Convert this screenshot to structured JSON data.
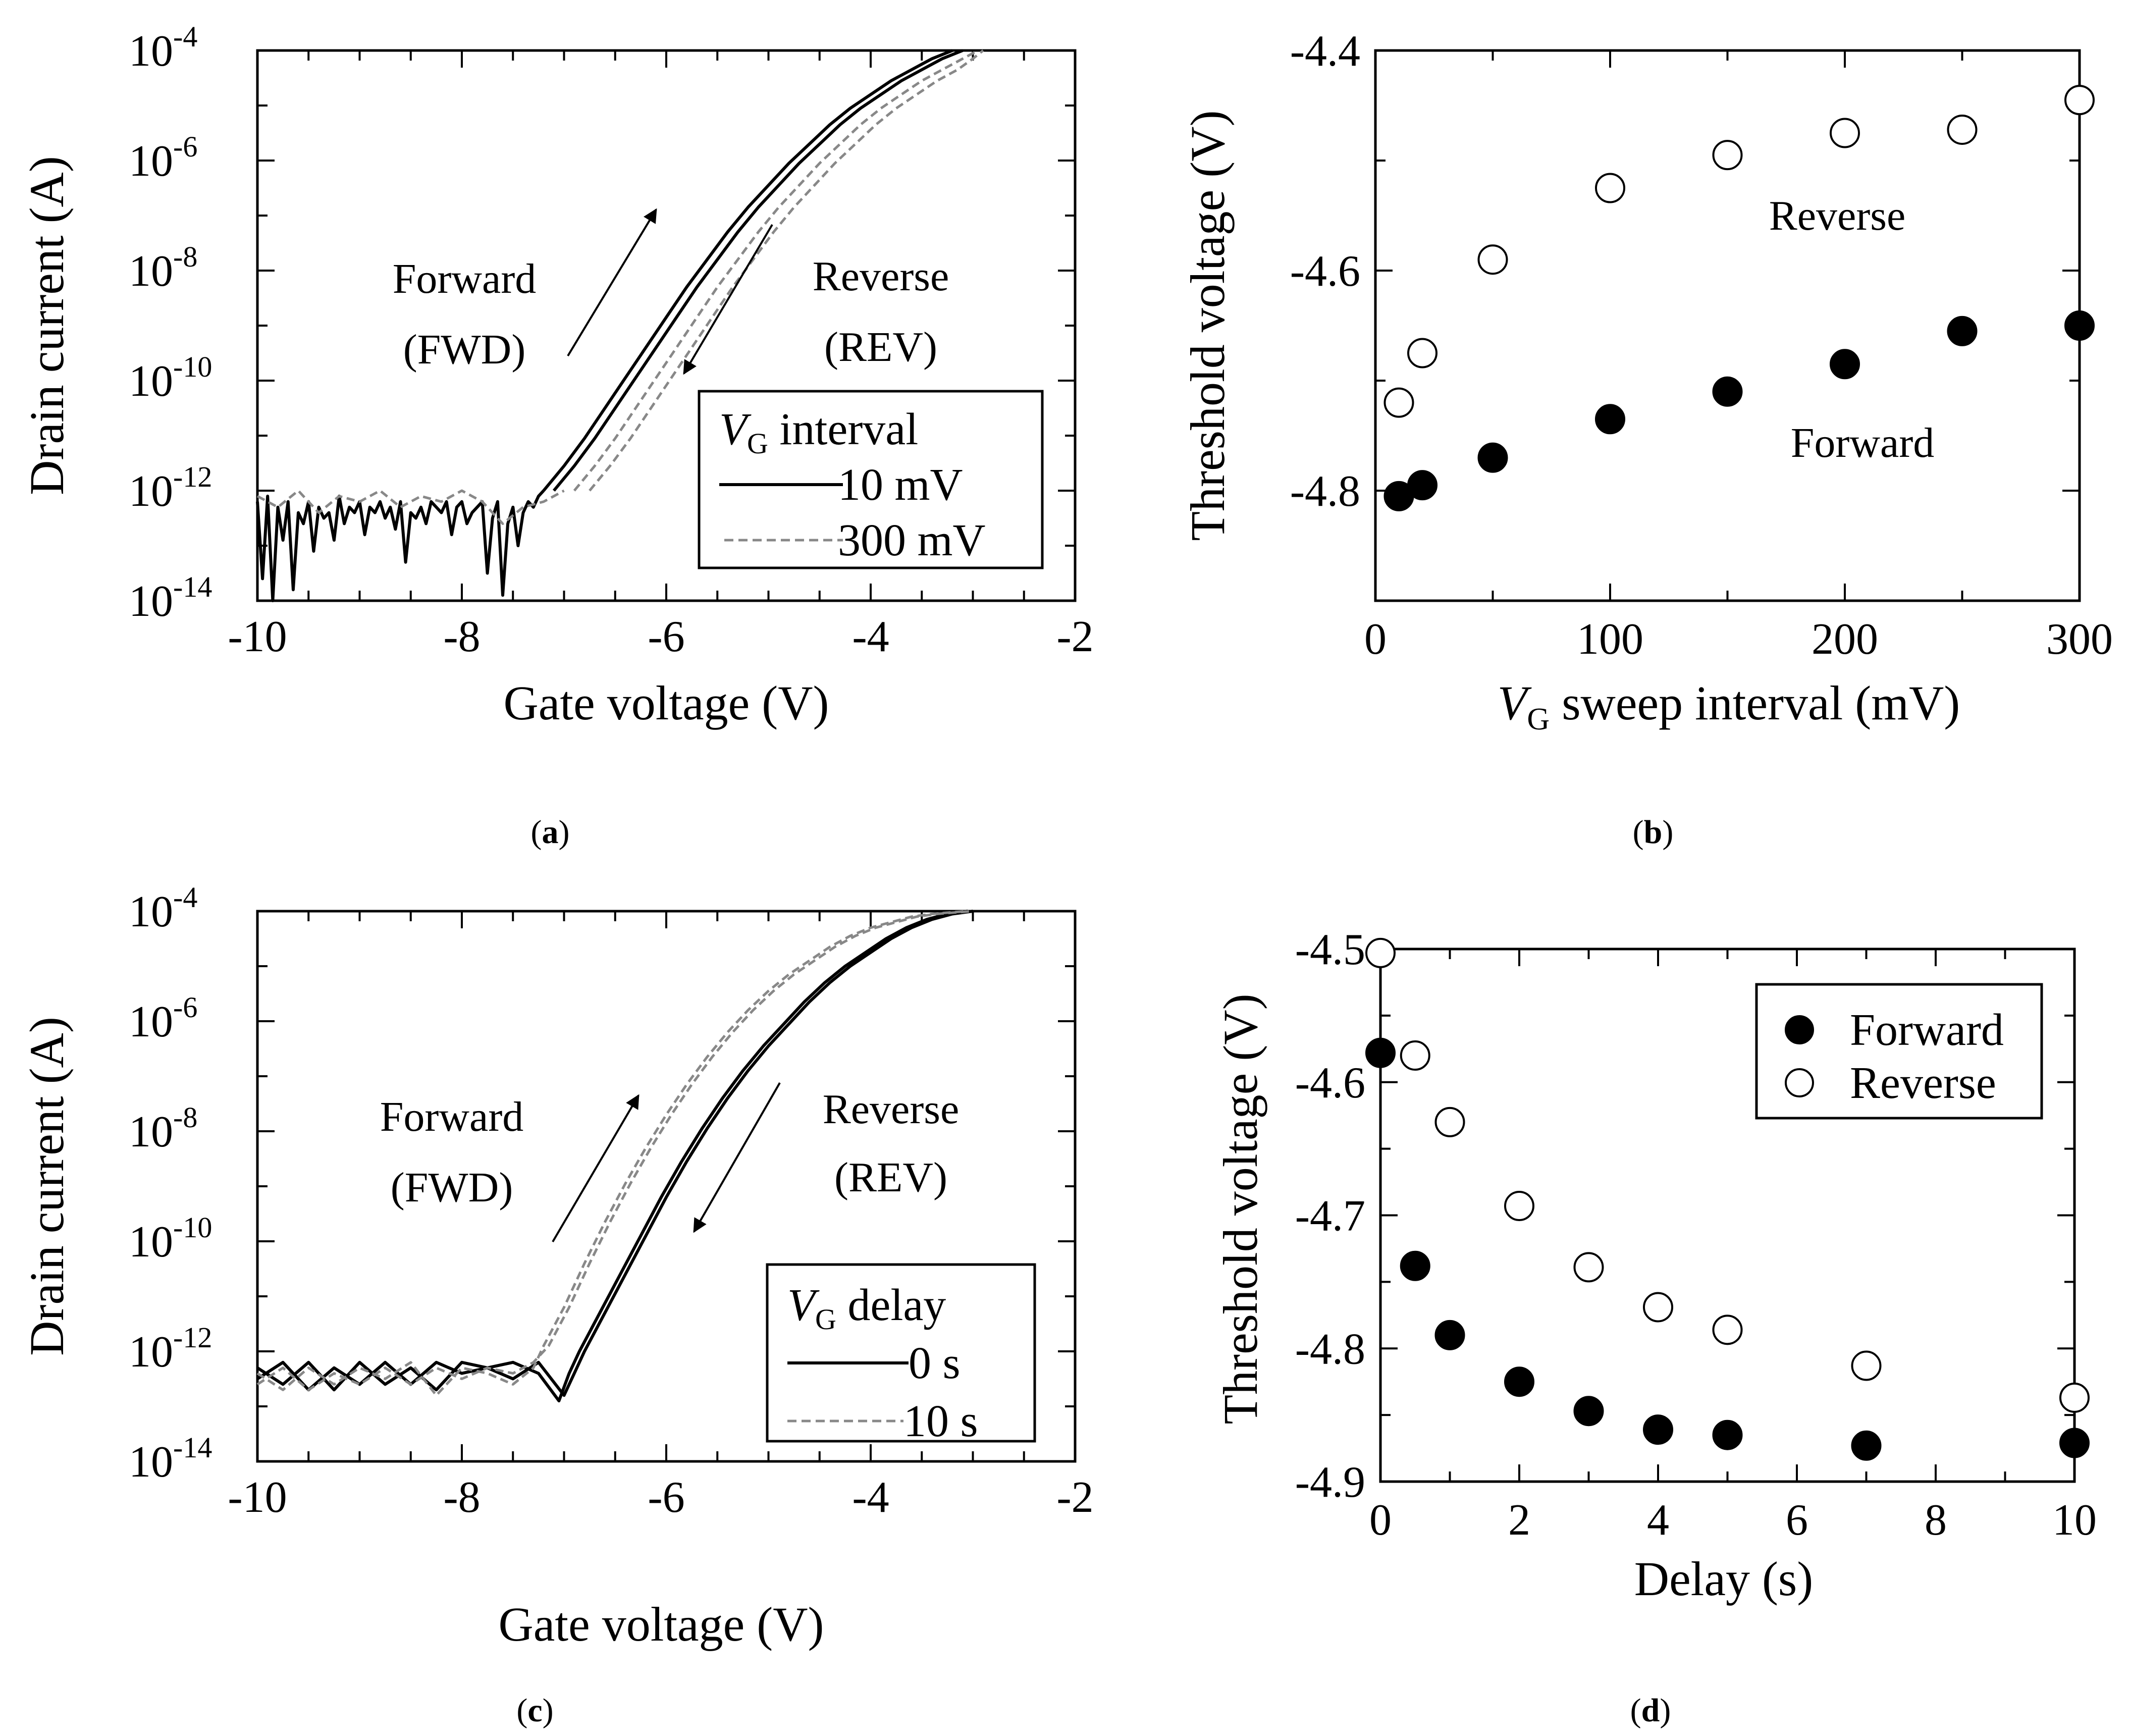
{
  "panels": {
    "a": {
      "label": "(",
      "letter": "a",
      "close": ")"
    },
    "b": {
      "label": "(",
      "letter": "b",
      "close": ")"
    },
    "c": {
      "label": "(",
      "letter": "c",
      "close": ")"
    },
    "d": {
      "label": "(",
      "letter": "d",
      "close": ")"
    }
  },
  "chart_data": [
    {
      "id": "a",
      "type": "line",
      "xlabel": "Gate voltage (V)",
      "ylabel": "Drain current (A)",
      "xlim": [
        -10,
        -2
      ],
      "xticks": [
        "-10",
        "-8",
        "-6",
        "-4",
        "-2"
      ],
      "yscale": "log",
      "ylim_exp": [
        -14,
        -4
      ],
      "yticks": [
        {
          "base": "10",
          "exp": "-14"
        },
        {
          "base": "10",
          "exp": "-12"
        },
        {
          "base": "10",
          "exp": "-10"
        },
        {
          "base": "10",
          "exp": "-8"
        },
        {
          "base": "10",
          "exp": "-6"
        },
        {
          "base": "10",
          "exp": "-4"
        }
      ],
      "annotations": {
        "forward": "Forward",
        "forward_abbr": "(FWD)",
        "reverse": "Reverse",
        "reverse_abbr": "(REV)"
      },
      "legend": {
        "title_var": "V",
        "title_sub": "G",
        "title_rest": " interval",
        "entries": [
          {
            "label": "10 mV",
            "style": "solid"
          },
          {
            "label": "300 mV",
            "style": "dashed"
          }
        ]
      },
      "series": [
        {
          "name": "10 mV FWD",
          "style": "solid",
          "color": "#000000",
          "x": [
            -7.2,
            -7.0,
            -6.8,
            -6.6,
            -6.4,
            -6.2,
            -6.0,
            -5.8,
            -5.6,
            -5.4,
            -5.2,
            -5.0,
            -4.8,
            -4.6,
            -4.4,
            -4.2,
            -4.0,
            -3.8,
            -3.6,
            -3.4,
            -3.2
          ],
          "y": [
            -12.0,
            -11.55,
            -11.05,
            -10.5,
            -9.95,
            -9.4,
            -8.85,
            -8.3,
            -7.8,
            -7.3,
            -6.85,
            -6.45,
            -6.05,
            -5.7,
            -5.35,
            -5.05,
            -4.8,
            -4.55,
            -4.35,
            -4.15,
            -4.0
          ]
        },
        {
          "name": "10 mV REV",
          "style": "solid",
          "color": "#000000",
          "x": [
            -7.1,
            -6.9,
            -6.7,
            -6.5,
            -6.3,
            -6.1,
            -5.9,
            -5.7,
            -5.5,
            -5.3,
            -5.1,
            -4.9,
            -4.7,
            -4.5,
            -4.3,
            -4.1,
            -3.9,
            -3.7,
            -3.5,
            -3.3,
            -3.1
          ],
          "y": [
            -12.0,
            -11.55,
            -11.05,
            -10.5,
            -9.95,
            -9.4,
            -8.85,
            -8.3,
            -7.8,
            -7.3,
            -6.85,
            -6.45,
            -6.05,
            -5.7,
            -5.35,
            -5.05,
            -4.8,
            -4.55,
            -4.35,
            -4.15,
            -4.0
          ]
        },
        {
          "name": "300 mV FWD",
          "style": "dashed",
          "color": "#888888",
          "x": [
            -6.9,
            -6.7,
            -6.5,
            -6.3,
            -6.1,
            -5.9,
            -5.7,
            -5.5,
            -5.3,
            -5.1,
            -4.9,
            -4.7,
            -4.5,
            -4.3,
            -4.1,
            -3.9,
            -3.7,
            -3.5,
            -3.3,
            -3.1,
            -2.95
          ],
          "y": [
            -12.0,
            -11.55,
            -11.05,
            -10.5,
            -9.95,
            -9.4,
            -8.85,
            -8.3,
            -7.8,
            -7.3,
            -6.85,
            -6.45,
            -6.05,
            -5.7,
            -5.35,
            -5.05,
            -4.8,
            -4.55,
            -4.35,
            -4.15,
            -4.0
          ]
        },
        {
          "name": "300 mV REV",
          "style": "dashed",
          "color": "#888888",
          "x": [
            -6.75,
            -6.55,
            -6.35,
            -6.15,
            -5.95,
            -5.75,
            -5.55,
            -5.35,
            -5.15,
            -4.95,
            -4.75,
            -4.55,
            -4.35,
            -4.15,
            -3.95,
            -3.75,
            -3.55,
            -3.35,
            -3.15,
            -3.0,
            -2.9
          ],
          "y": [
            -12.0,
            -11.55,
            -11.05,
            -10.5,
            -9.95,
            -9.4,
            -8.85,
            -8.3,
            -7.8,
            -7.3,
            -6.85,
            -6.45,
            -6.05,
            -5.7,
            -5.35,
            -5.05,
            -4.8,
            -4.55,
            -4.35,
            -4.15,
            -4.0
          ]
        },
        {
          "name": "10 mV noise floor",
          "style": "solid",
          "color": "#000000",
          "x": [
            -10.0,
            -9.95,
            -9.9,
            -9.85,
            -9.8,
            -9.75,
            -9.7,
            -9.65,
            -9.6,
            -9.55,
            -9.5,
            -9.45,
            -9.4,
            -9.35,
            -9.3,
            -9.25,
            -9.2,
            -9.15,
            -9.1,
            -9.05,
            -9.0,
            -8.95,
            -8.9,
            -8.85,
            -8.8,
            -8.75,
            -8.7,
            -8.65,
            -8.6,
            -8.55,
            -8.5,
            -8.45,
            -8.4,
            -8.35,
            -8.3,
            -8.25,
            -8.2,
            -8.15,
            -8.1,
            -8.05,
            -8.0,
            -7.95,
            -7.9,
            -7.85,
            -7.8,
            -7.75,
            -7.7,
            -7.65,
            -7.6,
            -7.55,
            -7.5,
            -7.45,
            -7.4,
            -7.35,
            -7.3,
            -7.25,
            -7.2
          ],
          "y": [
            -12.2,
            -13.6,
            -12.1,
            -14.0,
            -12.3,
            -12.9,
            -12.2,
            -13.8,
            -12.4,
            -12.6,
            -12.2,
            -13.1,
            -12.3,
            -12.5,
            -12.4,
            -12.9,
            -12.1,
            -12.6,
            -12.3,
            -12.4,
            -12.2,
            -12.8,
            -12.3,
            -12.4,
            -12.2,
            -12.5,
            -12.3,
            -12.7,
            -12.2,
            -13.3,
            -12.4,
            -12.5,
            -12.3,
            -12.6,
            -12.2,
            -12.3,
            -12.4,
            -12.2,
            -12.8,
            -12.3,
            -12.2,
            -12.6,
            -12.4,
            -12.3,
            -12.2,
            -13.5,
            -12.5,
            -12.2,
            -13.9,
            -12.6,
            -12.3,
            -13.0,
            -12.4,
            -12.2,
            -12.3,
            -12.1,
            -12.0
          ]
        },
        {
          "name": "300 mV noise floor",
          "style": "dashed",
          "color": "#888888",
          "x": [
            -10.0,
            -9.8,
            -9.6,
            -9.4,
            -9.2,
            -9.0,
            -8.8,
            -8.6,
            -8.4,
            -8.2,
            -8.0,
            -7.8,
            -7.6,
            -7.4,
            -7.2,
            -7.0
          ],
          "y": [
            -12.1,
            -12.3,
            -12.0,
            -12.4,
            -12.1,
            -12.2,
            -12.0,
            -12.3,
            -12.1,
            -12.2,
            -12.0,
            -12.2,
            -12.6,
            -12.3,
            -12.2,
            -12.0
          ]
        }
      ]
    },
    {
      "id": "b",
      "type": "scatter",
      "xlabel_var": "V",
      "xlabel_sub": "G",
      "xlabel_rest": " sweep interval (mV)",
      "ylabel": "Threshold voltage (V)",
      "xlim": [
        0,
        300
      ],
      "ylim": [
        -4.9,
        -4.4
      ],
      "xticks": [
        "0",
        "100",
        "200",
        "300"
      ],
      "yticks": [
        "-4.4",
        "-4.6",
        "-4.8"
      ],
      "annotations": {
        "reverse": "Reverse",
        "forward": "Forward"
      },
      "series": [
        {
          "name": "Reverse",
          "marker": "open-circle",
          "x": [
            10,
            20,
            50,
            100,
            150,
            200,
            250,
            300
          ],
          "y": [
            -4.72,
            -4.675,
            -4.59,
            -4.525,
            -4.495,
            -4.475,
            -4.472,
            -4.445
          ]
        },
        {
          "name": "Forward",
          "marker": "filled-circle",
          "x": [
            10,
            20,
            50,
            100,
            150,
            200,
            250,
            300
          ],
          "y": [
            -4.805,
            -4.795,
            -4.77,
            -4.735,
            -4.71,
            -4.685,
            -4.655,
            -4.65
          ]
        }
      ]
    },
    {
      "id": "c",
      "type": "line",
      "xlabel": "Gate voltage (V)",
      "ylabel": "Drain current (A)",
      "xlim": [
        -10,
        -2
      ],
      "xticks": [
        "-10",
        "-8",
        "-6",
        "-4",
        "-2"
      ],
      "yscale": "log",
      "ylim_exp": [
        -14,
        -4
      ],
      "yticks": [
        {
          "base": "10",
          "exp": "-14"
        },
        {
          "base": "10",
          "exp": "-12"
        },
        {
          "base": "10",
          "exp": "-10"
        },
        {
          "base": "10",
          "exp": "-8"
        },
        {
          "base": "10",
          "exp": "-6"
        },
        {
          "base": "10",
          "exp": "-4"
        }
      ],
      "annotations": {
        "forward": "Forward",
        "forward_abbr": "(FWD)",
        "reverse": "Reverse",
        "reverse_abbr": "(REV)"
      },
      "legend": {
        "title_var": "V",
        "title_sub": "G",
        "title_rest": " delay",
        "entries": [
          {
            "label": "0 s",
            "style": "solid"
          },
          {
            "label": "10 s",
            "style": "dashed"
          }
        ]
      },
      "series": [
        {
          "name": "0 s FWD",
          "style": "solid",
          "color": "#000000",
          "x": [
            -10.0,
            -9.75,
            -9.5,
            -9.25,
            -9.0,
            -8.75,
            -8.5,
            -8.25,
            -8.0,
            -7.75,
            -7.5,
            -7.25,
            -7.0,
            -6.9,
            -6.8,
            -6.6,
            -6.4,
            -6.2,
            -6.0,
            -5.8,
            -5.6,
            -5.4,
            -5.2,
            -5.0,
            -4.8,
            -4.6,
            -4.4,
            -4.2,
            -4.0,
            -3.8,
            -3.6,
            -3.4,
            -3.2,
            -3.0
          ],
          "y": [
            -12.3,
            -12.6,
            -12.2,
            -12.7,
            -12.2,
            -12.6,
            -12.3,
            -12.7,
            -12.2,
            -12.3,
            -12.5,
            -12.2,
            -12.8,
            -12.4,
            -12.0,
            -11.3,
            -10.6,
            -9.9,
            -9.2,
            -8.55,
            -7.95,
            -7.4,
            -6.9,
            -6.45,
            -6.05,
            -5.65,
            -5.3,
            -5.0,
            -4.75,
            -4.5,
            -4.3,
            -4.15,
            -4.05,
            -4.0
          ]
        },
        {
          "name": "0 s REV",
          "style": "solid",
          "color": "#000000",
          "x": [
            -10.0,
            -9.75,
            -9.5,
            -9.25,
            -9.0,
            -8.75,
            -8.5,
            -8.25,
            -8.0,
            -7.75,
            -7.5,
            -7.25,
            -7.05,
            -6.95,
            -6.85,
            -6.65,
            -6.45,
            -6.25,
            -6.05,
            -5.85,
            -5.65,
            -5.45,
            -5.25,
            -5.05,
            -4.85,
            -4.65,
            -4.45,
            -4.25,
            -4.05,
            -3.85,
            -3.65,
            -3.45,
            -3.25,
            -3.05
          ],
          "y": [
            -12.5,
            -12.2,
            -12.7,
            -12.3,
            -12.6,
            -12.2,
            -12.6,
            -12.2,
            -12.4,
            -12.3,
            -12.2,
            -12.4,
            -12.9,
            -12.4,
            -12.0,
            -11.3,
            -10.6,
            -9.9,
            -9.2,
            -8.55,
            -7.95,
            -7.4,
            -6.9,
            -6.45,
            -6.05,
            -5.65,
            -5.3,
            -5.0,
            -4.75,
            -4.5,
            -4.3,
            -4.15,
            -4.05,
            -4.0
          ]
        },
        {
          "name": "10 s FWD",
          "style": "dashed",
          "color": "#888888",
          "x": [
            -10.0,
            -9.75,
            -9.5,
            -9.25,
            -9.0,
            -8.75,
            -8.5,
            -8.25,
            -8.0,
            -7.75,
            -7.5,
            -7.3,
            -7.2,
            -7.0,
            -6.8,
            -6.6,
            -6.4,
            -6.2,
            -6.0,
            -5.8,
            -5.6,
            -5.4,
            -5.2,
            -5.0,
            -4.8,
            -4.6,
            -4.4,
            -4.2,
            -4.0,
            -3.8,
            -3.6,
            -3.4,
            -3.2,
            -3.05
          ],
          "y": [
            -12.4,
            -12.7,
            -12.3,
            -12.6,
            -12.3,
            -12.5,
            -12.2,
            -12.8,
            -12.3,
            -12.4,
            -12.6,
            -12.3,
            -11.9,
            -11.2,
            -10.4,
            -9.65,
            -8.95,
            -8.3,
            -7.7,
            -7.15,
            -6.65,
            -6.2,
            -5.8,
            -5.45,
            -5.15,
            -4.9,
            -4.65,
            -4.45,
            -4.3,
            -4.2,
            -4.1,
            -4.05,
            -4.02,
            -4.0
          ]
        },
        {
          "name": "10 s REV",
          "style": "dashed",
          "color": "#888888",
          "x": [
            -10.0,
            -9.75,
            -9.5,
            -9.25,
            -9.0,
            -8.75,
            -8.5,
            -8.25,
            -8.0,
            -7.75,
            -7.5,
            -7.3,
            -7.15,
            -6.95,
            -6.75,
            -6.55,
            -6.35,
            -6.15,
            -5.95,
            -5.75,
            -5.55,
            -5.35,
            -5.15,
            -4.95,
            -4.75,
            -4.55,
            -4.35,
            -4.15,
            -3.95,
            -3.75,
            -3.55,
            -3.35,
            -3.15,
            -3.0
          ],
          "y": [
            -12.6,
            -12.3,
            -12.7,
            -12.4,
            -12.6,
            -12.3,
            -12.6,
            -12.3,
            -12.5,
            -12.3,
            -12.4,
            -12.2,
            -11.9,
            -11.2,
            -10.4,
            -9.65,
            -8.95,
            -8.3,
            -7.7,
            -7.15,
            -6.65,
            -6.2,
            -5.8,
            -5.45,
            -5.15,
            -4.9,
            -4.65,
            -4.45,
            -4.3,
            -4.2,
            -4.1,
            -4.05,
            -4.02,
            -4.0
          ]
        }
      ]
    },
    {
      "id": "d",
      "type": "scatter",
      "xlabel": "Delay (s)",
      "ylabel": "Threshold voltage (V)",
      "xlim": [
        0,
        10
      ],
      "ylim": [
        -4.9,
        -4.5
      ],
      "xticks": [
        "0",
        "2",
        "4",
        "6",
        "8",
        "10"
      ],
      "yticks": [
        "-4.5",
        "-4.6",
        "-4.7",
        "-4.8",
        "-4.9"
      ],
      "legend": {
        "entries": [
          {
            "label": "Forward",
            "marker": "filled-circle"
          },
          {
            "label": "Reverse",
            "marker": "open-circle"
          }
        ]
      },
      "series": [
        {
          "name": "Forward",
          "marker": "filled-circle",
          "x": [
            0,
            0.5,
            1,
            2,
            3,
            4,
            5,
            7,
            10
          ],
          "y": [
            -4.578,
            -4.738,
            -4.79,
            -4.825,
            -4.847,
            -4.861,
            -4.865,
            -4.873,
            -4.871
          ]
        },
        {
          "name": "Reverse",
          "marker": "open-circle",
          "x": [
            0,
            0.5,
            1,
            2,
            3,
            4,
            5,
            7,
            10
          ],
          "y": [
            -4.503,
            -4.58,
            -4.63,
            -4.693,
            -4.739,
            -4.769,
            -4.786,
            -4.813,
            -4.837
          ]
        }
      ]
    }
  ]
}
